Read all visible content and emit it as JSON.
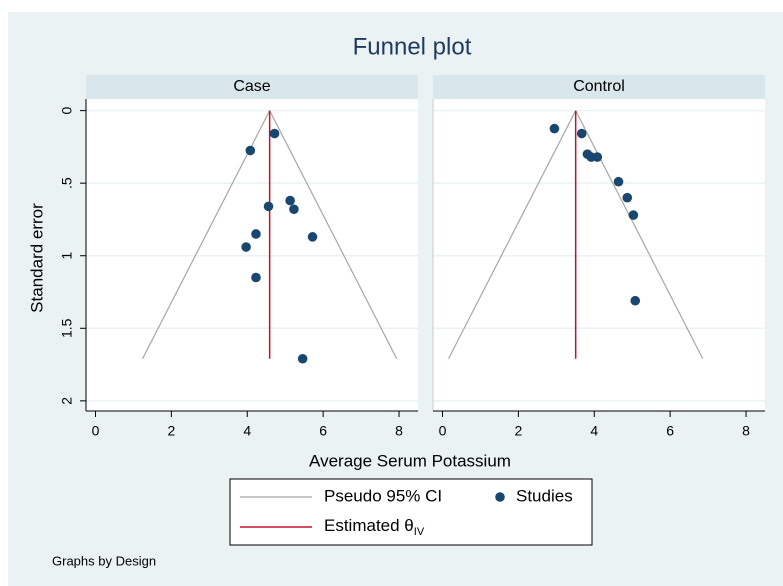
{
  "chart_data": {
    "type": "scatter",
    "title": "Funnel plot",
    "xlabel": "Average Serum Potassium",
    "ylabel": "Standard error",
    "note": "Graphs by Design",
    "xlim": [
      -0.25,
      8.5
    ],
    "xticks": [
      0,
      2,
      4,
      6,
      8
    ],
    "ylim": [
      -0.08,
      2.07
    ],
    "yticks": [
      0,
      {
        "value": 0.5,
        "label": ".5"
      },
      1,
      1.5,
      2
    ],
    "grid": true,
    "legend": [
      {
        "name": "Pseudo 95% CI",
        "color": "#a6a6a6"
      },
      {
        "name": "Studies",
        "color": "#1a476f"
      },
      {
        "name": "Estimated θ",
        "subscript": "IV",
        "color": "#c4102f"
      }
    ],
    "panels": [
      {
        "name": "Case",
        "x": [
          4.72,
          4.08,
          5.13,
          5.23,
          4.56,
          4.23,
          5.72,
          3.97,
          4.23,
          5.46
        ],
        "y": [
          0.158,
          0.275,
          0.62,
          0.68,
          0.66,
          0.85,
          0.87,
          0.94,
          1.15,
          1.71
        ],
        "estimate": 4.59,
        "ci_y": [
          0,
          1.71
        ],
        "ci_lower": [
          4.59,
          1.24
        ],
        "ci_upper": [
          4.59,
          7.94
        ]
      },
      {
        "name": "Control",
        "x": [
          2.95,
          3.67,
          3.82,
          3.92,
          4.08,
          4.64,
          4.87,
          5.03,
          5.08
        ],
        "y": [
          0.124,
          0.158,
          0.3,
          0.32,
          0.32,
          0.49,
          0.6,
          0.72,
          1.31
        ],
        "estimate": 3.51,
        "ci_y": [
          0,
          1.71
        ],
        "ci_lower": [
          3.51,
          0.16
        ],
        "ci_upper": [
          3.51,
          6.86
        ]
      }
    ]
  }
}
